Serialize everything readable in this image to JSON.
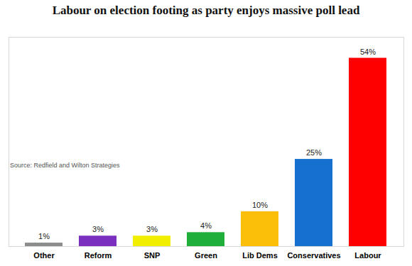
{
  "chart_data": {
    "type": "bar",
    "title": "Labour on election footing as party enjoys massive poll lead",
    "caption": "Source: Redfield and Wilton Strategies",
    "categories": [
      "Other",
      "Reform",
      "SNP",
      "Green",
      "Lib Dems",
      "Conservatives",
      "Labour"
    ],
    "values": [
      1,
      3,
      3,
      4,
      10,
      25,
      54
    ],
    "value_labels": [
      "1%",
      "3%",
      "3%",
      "4%",
      "10%",
      "25%",
      "54%"
    ],
    "colors": [
      "#8c8c8c",
      "#7b2fbe",
      "#f2ee00",
      "#1fae3a",
      "#fbbf0a",
      "#1670d0",
      "#ff0000"
    ],
    "ylim": [
      0,
      60
    ],
    "data_labels": true,
    "tick_labels": "x",
    "grid": false
  }
}
